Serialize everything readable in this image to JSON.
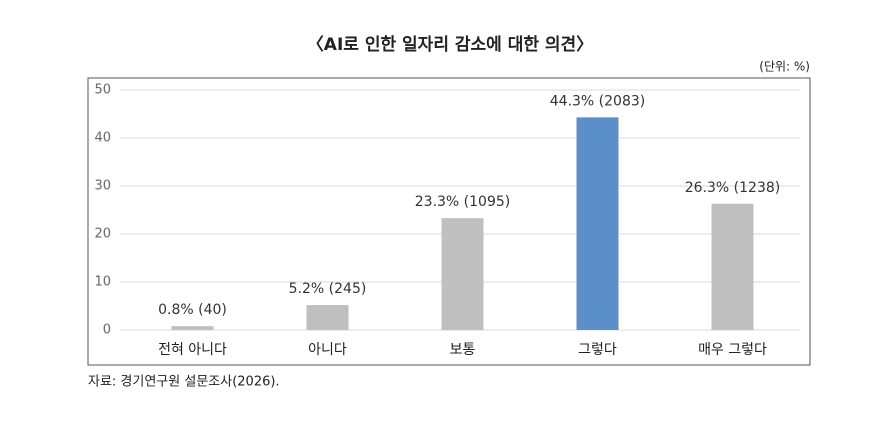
{
  "chart_data": {
    "type": "bar",
    "title": "〈AI로 인한 일자리 감소에 대한 의견〉",
    "unit": "(단위: %)",
    "source": "자료: 경기연구원 설문조사(2026).",
    "categories": [
      "전혀 아니다",
      "아니다",
      "보통",
      "그렇다",
      "매우 그렇다"
    ],
    "values": [
      0.8,
      5.2,
      23.3,
      44.3,
      26.3
    ],
    "value_labels": [
      "0.8% (40)",
      "5.2% (245)",
      "23.3% (1095)",
      "44.3% (2083)",
      "26.3% (1238)"
    ],
    "colors": [
      "#bfbfbf",
      "#bfbfbf",
      "#bfbfbf",
      "#5b8fc9",
      "#bfbfbf"
    ],
    "ylim": [
      0,
      50
    ],
    "yticks": [
      0,
      10,
      20,
      30,
      40,
      50
    ],
    "grid": true
  }
}
